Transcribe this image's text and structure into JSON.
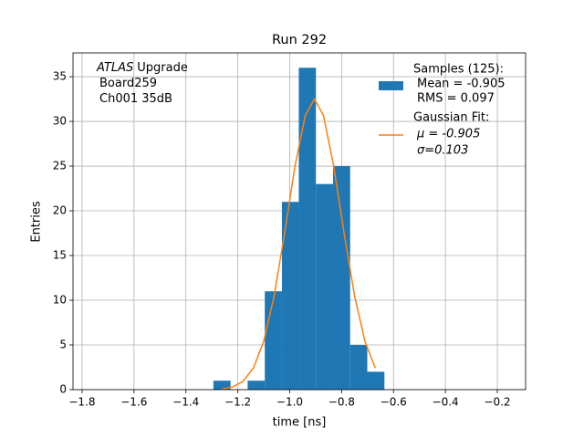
{
  "chart_data": {
    "type": "histogram",
    "title": "Run 292",
    "x_label": "time [ns]",
    "y_label": "Entries",
    "bins": [
      -1.294,
      -1.228,
      -1.162,
      -1.096,
      -1.03,
      -0.965,
      -0.899,
      -0.833,
      -0.767,
      -0.701,
      -0.635
    ],
    "series": [
      {
        "name": "Samples (125):",
        "details": [
          "Mean = -0.905",
          "RMS = 0.097"
        ],
        "color": "#1f77b4",
        "values": [
          1,
          0,
          1,
          11,
          21,
          36,
          23,
          25,
          5,
          2
        ]
      }
    ],
    "fit": {
      "type": "line",
      "name": "Gaussian Fit:",
      "details": [
        "μ = -0.905",
        "σ=0.103"
      ],
      "color": "#ff7f0e",
      "x": [
        -1.26,
        -1.22,
        -1.18,
        -1.14,
        -1.1,
        -1.06,
        -1.02,
        -0.98,
        -0.94,
        -0.905,
        -0.87,
        -0.83,
        -0.79,
        -0.75,
        -0.71,
        -0.67
      ],
      "values": [
        0.09,
        0.3,
        0.92,
        2.41,
        5.42,
        10.48,
        17.43,
        24.94,
        30.68,
        32.5,
        30.68,
        24.94,
        17.43,
        10.48,
        5.42,
        2.41
      ]
    },
    "annotation": {
      "emphasis": "ATLAS",
      "lines": [
        "Upgrade",
        "Board259",
        "Ch001 35dB"
      ]
    },
    "xlim": [
      -1.835,
      -0.091
    ],
    "ylim": [
      0,
      37.66
    ],
    "xticks": [
      {
        "value": -1.8,
        "label": "−1.8"
      },
      {
        "value": -1.6,
        "label": "−1.6"
      },
      {
        "value": -1.4,
        "label": "−1.4"
      },
      {
        "value": -1.2,
        "label": "−1.2"
      },
      {
        "value": -1.0,
        "label": "−1.0"
      },
      {
        "value": -0.8,
        "label": "−0.8"
      },
      {
        "value": -0.6,
        "label": "−0.6"
      },
      {
        "value": -0.4,
        "label": "−0.4"
      },
      {
        "value": -0.2,
        "label": "−0.2"
      }
    ],
    "yticks": [
      0,
      5,
      10,
      15,
      20,
      25,
      30,
      35
    ],
    "grid": true,
    "legend": "upper right"
  }
}
